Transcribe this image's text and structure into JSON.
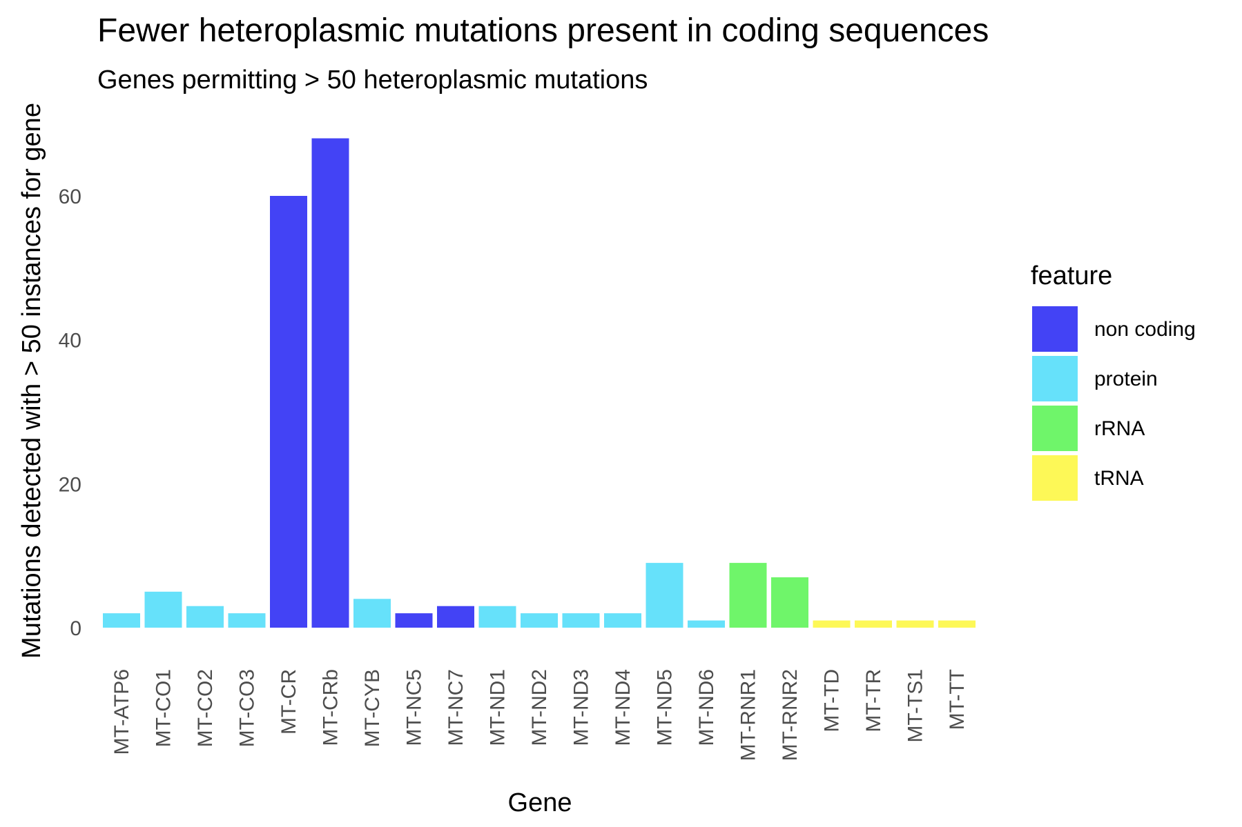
{
  "chart_data": {
    "type": "bar",
    "title": "Fewer heteroplasmic mutations present in coding sequences",
    "subtitle": "Genes permitting > 50 heteroplasmic mutations",
    "xlabel": "Gene",
    "ylabel": "Mutations detected with > 50 instances for gene",
    "ylim": [
      0,
      70
    ],
    "yticks": [
      0,
      20,
      40,
      60
    ],
    "grid": false,
    "legend_position": "right",
    "legend_title": "feature",
    "features": [
      {
        "name": "non coding",
        "color": "#4343f5"
      },
      {
        "name": "protein",
        "color": "#66e1fa"
      },
      {
        "name": "rRNA",
        "color": "#6ff56a"
      },
      {
        "name": "tRNA",
        "color": "#fdf857"
      }
    ],
    "categories": [
      "MT-ATP6",
      "MT-CO1",
      "MT-CO2",
      "MT-CO3",
      "MT-CR",
      "MT-CRb",
      "MT-CYB",
      "MT-NC5",
      "MT-NC7",
      "MT-ND1",
      "MT-ND2",
      "MT-ND3",
      "MT-ND4",
      "MT-ND5",
      "MT-ND6",
      "MT-RNR1",
      "MT-RNR2",
      "MT-TD",
      "MT-TR",
      "MT-TS1",
      "MT-TT"
    ],
    "values": [
      2,
      5,
      3,
      2,
      60,
      68,
      4,
      2,
      3,
      3,
      2,
      2,
      2,
      9,
      1,
      9,
      7,
      1,
      1,
      1,
      1
    ],
    "bar_feature": [
      "protein",
      "protein",
      "protein",
      "protein",
      "non coding",
      "non coding",
      "protein",
      "non coding",
      "non coding",
      "protein",
      "protein",
      "protein",
      "protein",
      "protein",
      "protein",
      "rRNA",
      "rRNA",
      "tRNA",
      "tRNA",
      "tRNA",
      "tRNA"
    ]
  }
}
